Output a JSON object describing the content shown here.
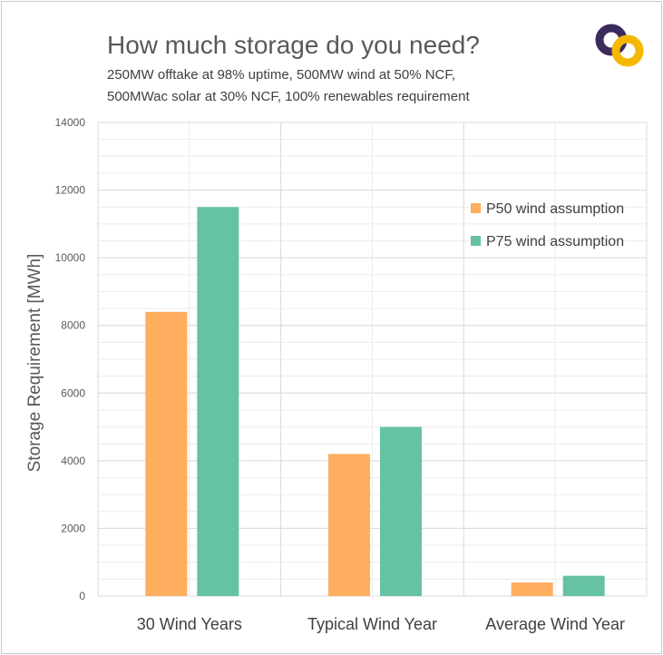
{
  "header": {
    "title": "How much storage do you need?",
    "subtitle_line1": "250MW offtake at 98% uptime, 500MW wind at 50% NCF,",
    "subtitle_line2": "500MWac solar at 30% NCF, 100% renewables requirement"
  },
  "logo": {
    "icon": "interlocking-rings-logo",
    "colors": [
      "#3b2a5c",
      "#f5b800"
    ]
  },
  "chart_data": {
    "type": "bar",
    "title": "How much storage do you need?",
    "xlabel": "",
    "ylabel": "Storage Requirement [MWh]",
    "ylim": [
      0,
      14000
    ],
    "yticks": [
      0,
      2000,
      4000,
      6000,
      8000,
      10000,
      12000,
      14000
    ],
    "categories": [
      "30 Wind Years",
      "Typical Wind Year",
      "Average Wind Year"
    ],
    "series": [
      {
        "name": "P50 wind assumption",
        "color": "#ffad5e",
        "values": [
          8400,
          4200,
          400
        ]
      },
      {
        "name": "P75 wind assumption",
        "color": "#66c2a5",
        "values": [
          11500,
          5000,
          600
        ]
      }
    ],
    "legend_position": "top-right",
    "grid": true
  }
}
